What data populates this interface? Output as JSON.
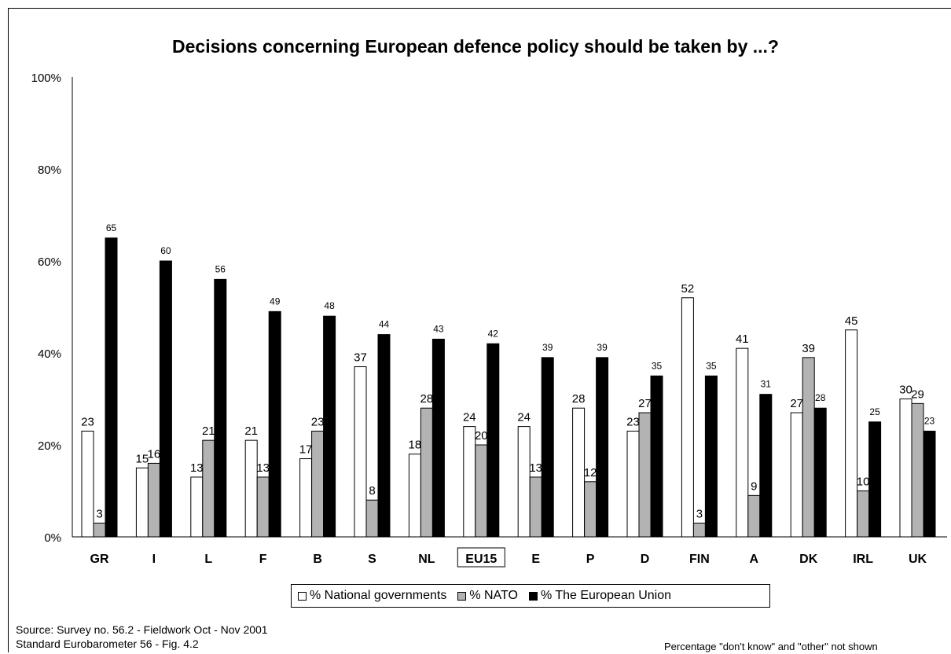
{
  "title": "Decisions concerning European defence policy should be taken by ...?",
  "source_line1": "Source: Survey no. 56.2 -  Fieldwork Oct - Nov 2001",
  "source_line2": "Standard Eurobarometer 56 - Fig. 4.2",
  "note": "Percentage \"don't know\" and \"other\" not shown",
  "colors": {
    "national": "#ffffff",
    "nato": "#b3b3b3",
    "eu": "#000000"
  },
  "chart_data": {
    "type": "bar",
    "title": "Decisions concerning European defence policy should be taken by ...?",
    "categories": [
      "GR",
      "I",
      "L",
      "F",
      "B",
      "S",
      "NL",
      "EU15",
      "E",
      "P",
      "D",
      "FIN",
      "A",
      "DK",
      "IRL",
      "UK"
    ],
    "highlighted_category": "EU15",
    "series": [
      {
        "name": "% National governments",
        "color": "#ffffff",
        "values": [
          23,
          15,
          13,
          21,
          17,
          37,
          18,
          24,
          24,
          28,
          23,
          52,
          41,
          27,
          45,
          30
        ]
      },
      {
        "name": "% NATO",
        "color": "#b3b3b3",
        "values": [
          3,
          16,
          21,
          13,
          23,
          8,
          28,
          20,
          13,
          12,
          27,
          3,
          9,
          39,
          10,
          29
        ]
      },
      {
        "name": "% The European Union",
        "color": "#000000",
        "values": [
          65,
          60,
          56,
          49,
          48,
          44,
          43,
          42,
          39,
          39,
          35,
          35,
          31,
          28,
          25,
          23
        ]
      }
    ],
    "yticks": [
      "0%",
      "20%",
      "40%",
      "60%",
      "80%",
      "100%"
    ],
    "ylim": [
      0,
      100
    ],
    "grid": false,
    "legend": "bottom"
  }
}
